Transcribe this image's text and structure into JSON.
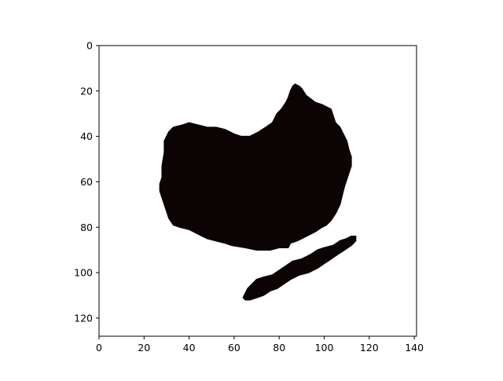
{
  "chart_data": {
    "type": "heatmap",
    "title": "",
    "xlabel": "",
    "ylabel": "",
    "xlim": [
      0,
      141
    ],
    "ylim": [
      128,
      0
    ],
    "x_ticks": [
      "0",
      "20",
      "40",
      "60",
      "80",
      "100",
      "120",
      "140"
    ],
    "y_ticks": [
      "0",
      "20",
      "40",
      "60",
      "80",
      "100",
      "120"
    ],
    "grid": false,
    "legend": "none",
    "colors": {
      "background": "#ffffff",
      "foreground": "#0c0404",
      "axis": "#000000"
    },
    "regions": [
      {
        "label": "large blob",
        "outline": [
          [
            87,
            17
          ],
          [
            89,
            18
          ],
          [
            90,
            19
          ],
          [
            92,
            22
          ],
          [
            96,
            25
          ],
          [
            99,
            26
          ],
          [
            101,
            27
          ],
          [
            103,
            28
          ],
          [
            104,
            31
          ],
          [
            105,
            34
          ],
          [
            107,
            36
          ],
          [
            108,
            38
          ],
          [
            109,
            40
          ],
          [
            110,
            42
          ],
          [
            111,
            46
          ],
          [
            112,
            49
          ],
          [
            112,
            53
          ],
          [
            111,
            56
          ],
          [
            110,
            59
          ],
          [
            109,
            62
          ],
          [
            108,
            66
          ],
          [
            107,
            70
          ],
          [
            105,
            74
          ],
          [
            103,
            77
          ],
          [
            101,
            79
          ],
          [
            99,
            80
          ],
          [
            96,
            82
          ],
          [
            94,
            83
          ],
          [
            90,
            85
          ],
          [
            88,
            86
          ],
          [
            85,
            87
          ],
          [
            84,
            89
          ],
          [
            80,
            89
          ],
          [
            76,
            90
          ],
          [
            70,
            90
          ],
          [
            65,
            89
          ],
          [
            59,
            88
          ],
          [
            56,
            87
          ],
          [
            52,
            86
          ],
          [
            48,
            85
          ],
          [
            44,
            83
          ],
          [
            40,
            81
          ],
          [
            36,
            80
          ],
          [
            33,
            79
          ],
          [
            31,
            76
          ],
          [
            30,
            73
          ],
          [
            29,
            70
          ],
          [
            28,
            67
          ],
          [
            27,
            64
          ],
          [
            27,
            61
          ],
          [
            28,
            58
          ],
          [
            28,
            53
          ],
          [
            29,
            47
          ],
          [
            29,
            42
          ],
          [
            31,
            38
          ],
          [
            33,
            36
          ],
          [
            37,
            35
          ],
          [
            40,
            34
          ],
          [
            44,
            35
          ],
          [
            48,
            36
          ],
          [
            52,
            36
          ],
          [
            56,
            37
          ],
          [
            60,
            39
          ],
          [
            63,
            40
          ],
          [
            67,
            40
          ],
          [
            71,
            38
          ],
          [
            74,
            36
          ],
          [
            77,
            34
          ],
          [
            79,
            30
          ],
          [
            81,
            28
          ],
          [
            83,
            25
          ],
          [
            84,
            23
          ],
          [
            85,
            20
          ],
          [
            86,
            18
          ]
        ]
      },
      {
        "label": "small blob",
        "outline": [
          [
            114,
            84
          ],
          [
            114,
            86
          ],
          [
            112,
            88
          ],
          [
            109,
            90
          ],
          [
            106,
            92
          ],
          [
            103,
            94
          ],
          [
            100,
            96
          ],
          [
            97,
            98
          ],
          [
            93,
            100
          ],
          [
            89,
            101
          ],
          [
            85,
            103
          ],
          [
            82,
            105
          ],
          [
            79,
            107
          ],
          [
            76,
            108
          ],
          [
            73,
            110
          ],
          [
            70,
            111
          ],
          [
            67,
            112
          ],
          [
            65,
            112
          ],
          [
            64,
            111
          ],
          [
            65,
            109
          ],
          [
            66,
            107
          ],
          [
            68,
            105
          ],
          [
            70,
            103
          ],
          [
            73,
            102
          ],
          [
            77,
            101
          ],
          [
            80,
            99
          ],
          [
            83,
            97
          ],
          [
            86,
            95
          ],
          [
            90,
            94
          ],
          [
            94,
            92
          ],
          [
            97,
            90
          ],
          [
            100,
            89
          ],
          [
            104,
            88
          ],
          [
            107,
            86
          ],
          [
            110,
            85
          ],
          [
            112,
            84
          ]
        ]
      }
    ]
  }
}
